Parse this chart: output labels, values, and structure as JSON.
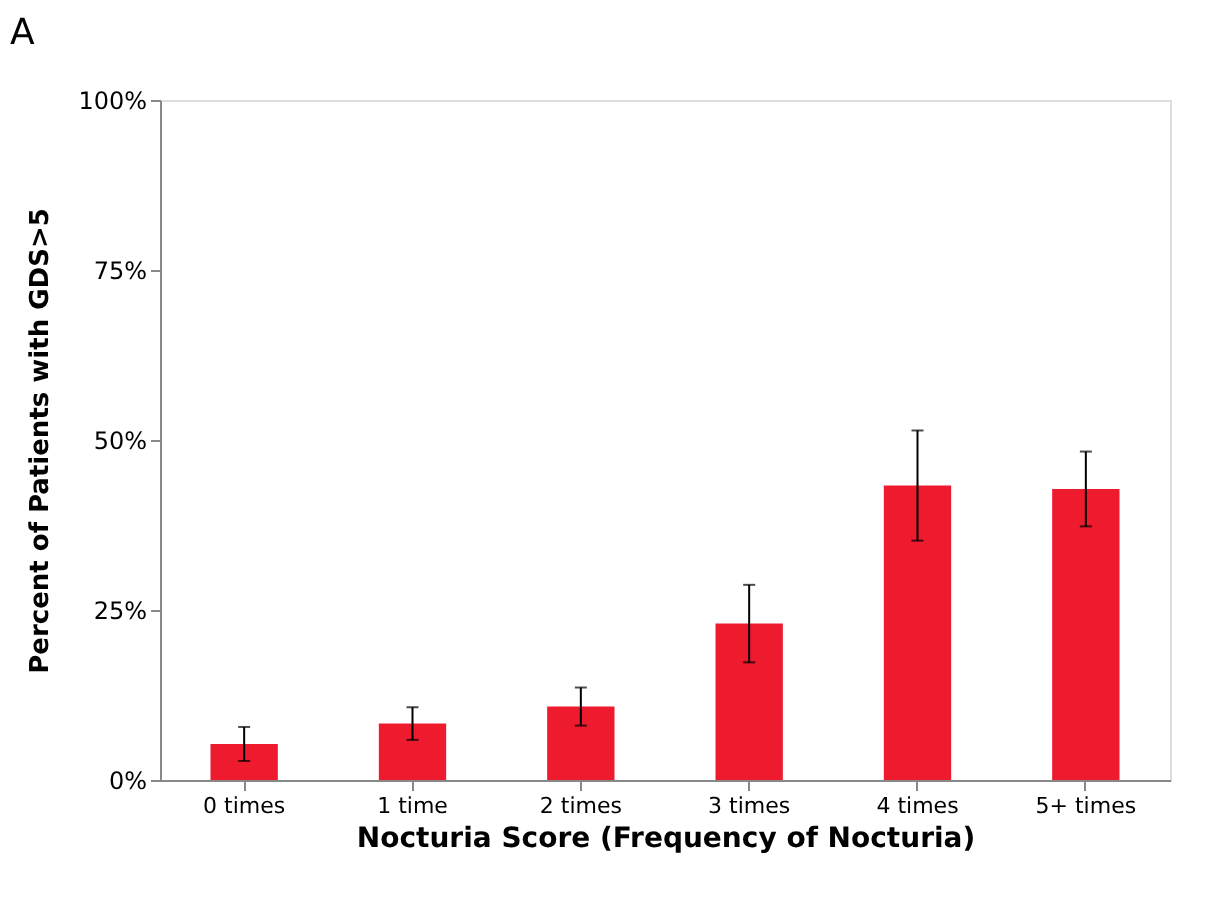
{
  "chart_data": {
    "type": "bar",
    "title": "A",
    "xlabel": "Nocturia Score (Frequency of Nocturia)",
    "ylabel": "Percent of Patients with GDS>5",
    "categories": [
      "0 times",
      "1 time",
      "2 times",
      "3 times",
      "4 times",
      "5+ times"
    ],
    "values": [
      5.3,
      8.3,
      10.8,
      23.0,
      43.3,
      42.8
    ],
    "errors": [
      2.5,
      2.4,
      2.8,
      5.7,
      8.1,
      5.5
    ],
    "color": "#ee1a2e",
    "ylim": [
      0,
      100
    ],
    "yticks": [
      {
        "value": 0,
        "label": "0%"
      },
      {
        "value": 25,
        "label": "25%"
      },
      {
        "value": 50,
        "label": "50%"
      },
      {
        "value": 75,
        "label": "75%"
      },
      {
        "value": 100,
        "label": "100%"
      }
    ],
    "grid": false
  }
}
